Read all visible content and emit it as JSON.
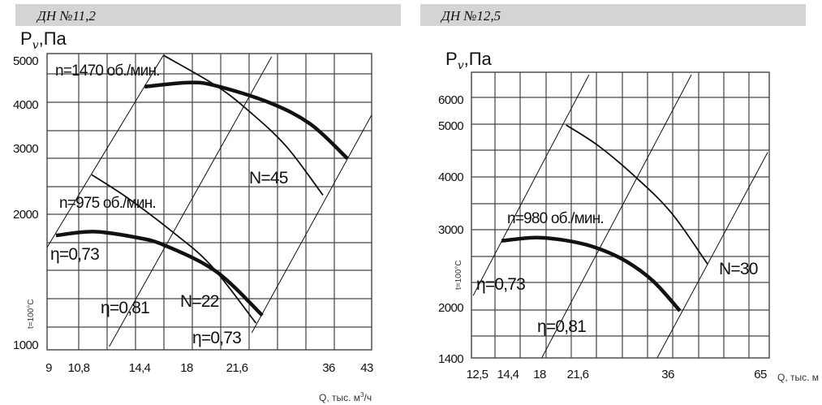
{
  "chart_data": [
    {
      "type": "line",
      "title": "ДН №11,2",
      "ylabel": {
        "main": "P",
        "sub": "v",
        "tail": ",Па"
      },
      "xlabel": {
        "main": "Q, тыс. м",
        "sup": "3",
        "tail": "/ч"
      },
      "note": "t=100°C",
      "x_scale": "log",
      "y_scale": "log",
      "xlim": [
        9,
        43
      ],
      "ylim": [
        1000,
        5000
      ],
      "grid": true,
      "x_ticks": [
        "9",
        "10,8",
        "14,4",
        "18",
        "21,6",
        "36",
        "43"
      ],
      "y_ticks": [
        "5000",
        "4000",
        "3000",
        "2000",
        "1000"
      ],
      "series": [
        {
          "name": "n=1470 об./мин.",
          "kind": "pressure",
          "points": [
            [
              14.5,
              4270
            ],
            [
              18.0,
              4370
            ],
            [
              20.6,
              4290
            ],
            [
              26.8,
              3900
            ],
            [
              32.7,
              3460
            ],
            [
              39.1,
              2860
            ]
          ]
        },
        {
          "name": "N=45",
          "kind": "power",
          "points": [
            [
              15.9,
              5090
            ],
            [
              20.6,
              4290
            ],
            [
              24.2,
              3720
            ],
            [
              29.0,
              3060
            ],
            [
              34.7,
              2330
            ]
          ]
        },
        {
          "name": "n=975 об./мин.",
          "kind": "pressure",
          "points": [
            [
              9.4,
              1860
            ],
            [
              11.3,
              1900
            ],
            [
              13.9,
              1840
            ],
            [
              16.0,
              1760
            ],
            [
              20.6,
              1520
            ],
            [
              25.8,
              1190
            ]
          ]
        },
        {
          "name": "N=22",
          "kind": "power",
          "points": [
            [
              11.2,
              2610
            ],
            [
              13.3,
              2300
            ],
            [
              16.7,
              1890
            ],
            [
              20.1,
              1570
            ],
            [
              25.0,
              1140
            ]
          ]
        }
      ],
      "efficiency_lines": [
        {
          "label": "η=0,73",
          "points": [
            [
              9.0,
              1740
            ],
            [
              15.9,
              5090
            ]
          ]
        },
        {
          "label": "η=0,81",
          "points": [
            [
              12.2,
              1000
            ],
            [
              27.0,
              5050
            ]
          ]
        },
        {
          "label": "η=0,73",
          "points": [
            [
              24.5,
              1080
            ],
            [
              44.0,
              3640
            ]
          ]
        }
      ]
    },
    {
      "type": "line",
      "title": "ДН №12,5",
      "ylabel": {
        "main": "P",
        "sub": "v",
        "tail": ",Па"
      },
      "xlabel": {
        "main": "Q, тыс. м"
      },
      "note": "t=100°C",
      "xlim": [
        12.5,
        65
      ],
      "ylim": [
        1400,
        6000
      ],
      "grid": true,
      "x_ticks": [
        "12,5",
        "14,4",
        "18",
        "21,6",
        "36",
        "65"
      ],
      "y_ticks": [
        "6000",
        "5000",
        "4000",
        "3000",
        "2000",
        "1400"
      ],
      "series": [
        {
          "name": "n=980 об./мин.",
          "kind": "pressure",
          "points": [
            [
              14.05,
              2860
            ],
            [
              17.7,
              2900
            ],
            [
              21.1,
              2850
            ],
            [
              25.0,
              2760
            ],
            [
              29.4,
              2600
            ],
            [
              33.7,
              2350
            ],
            [
              39.7,
              1980
            ]
          ]
        },
        {
          "name": "N=30",
          "kind": "power",
          "points": [
            [
              20.5,
              5030
            ],
            [
              25.0,
              4600
            ],
            [
              31.1,
              3970
            ],
            [
              37.2,
              3310
            ],
            [
              48.1,
              2570
            ]
          ]
        }
      ],
      "efficiency_lines": [
        {
          "label": "η=0,73",
          "points": [
            [
              12.5,
              2170
            ],
            [
              23.4,
              6850
            ]
          ]
        },
        {
          "label": "η=0,81",
          "points": [
            [
              18.2,
              1400
            ],
            [
              43.2,
              6850
            ]
          ]
        },
        {
          "label": "",
          "points": [
            [
              34.3,
              1400
            ],
            [
              66.5,
              4480
            ]
          ]
        }
      ]
    }
  ]
}
